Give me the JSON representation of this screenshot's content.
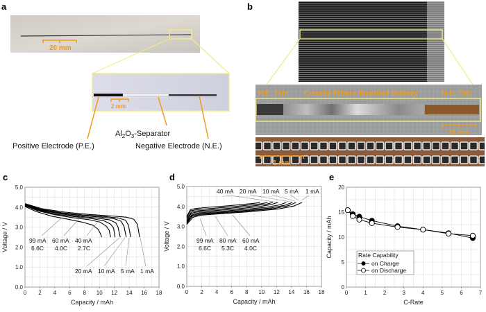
{
  "panels": {
    "a": {
      "label": "a",
      "scale_main": "20 mm",
      "scale_inset": "2 mm",
      "separator_label_pre": "Al",
      "separator_sub1": "2",
      "separator_mid": "O",
      "separator_sub2": "3",
      "separator_post": "-Separator",
      "positive_label": "Positive Electrode (P.E.)",
      "negative_label": "Negative Electrode (N.E.)"
    },
    "b": {
      "label": "b",
      "pe_tab": "P.E. Tab",
      "battery_label": "Coaxial-Fibers Bundled Battery",
      "ne_tab": "N.E. Tab",
      "scale_inset": "20 mm",
      "scale_cross": "1 mm"
    },
    "c": {
      "label": "c"
    },
    "d": {
      "label": "d"
    },
    "e": {
      "label": "e"
    }
  },
  "colors": {
    "highlight_box": "#f0ec8a",
    "scale_bar": "#f39a1e",
    "line": "#000000",
    "grid": "#d8d8d8"
  },
  "chart_data": [
    {
      "panel": "c",
      "type": "line",
      "xlabel": "Capacity  /  mAh",
      "ylabel": "Voltage  /  V",
      "xlim": [
        0,
        18
      ],
      "ylim": [
        0,
        5
      ],
      "xticks": [
        "0",
        "2",
        "4",
        "6",
        "8",
        "10",
        "12",
        "14",
        "16",
        "18"
      ],
      "yticks": [
        "0.0",
        "1.0",
        "2.0",
        "3.0",
        "4.0",
        "5.0"
      ],
      "grid": true,
      "annotations": [
        {
          "text": "99 mA",
          "sub": "6.6C"
        },
        {
          "text": "60 mA",
          "sub": "4.0C"
        },
        {
          "text": "40 mA",
          "sub": "2.7C"
        },
        {
          "text": "20 mA"
        },
        {
          "text": "10 mA"
        },
        {
          "text": "5 mA"
        },
        {
          "text": "1 mA"
        }
      ],
      "series": [
        {
          "x": [
            0,
            2.3,
            5.4,
            8.5,
            11.6,
            13.6,
            14.6,
            15.1,
            15.4
          ],
          "y": [
            4.18,
            3.92,
            3.75,
            3.64,
            3.56,
            3.5,
            3.4,
            3.15,
            2.5
          ]
        },
        {
          "x": [
            0,
            2.1,
            5.0,
            7.8,
            10.7,
            12.5,
            13.5,
            13.9,
            14.2
          ],
          "y": [
            4.16,
            3.9,
            3.72,
            3.61,
            3.53,
            3.46,
            3.35,
            3.1,
            2.5
          ]
        },
        {
          "x": [
            0,
            2.0,
            4.8,
            7.5,
            10.2,
            12.0,
            12.9,
            13.3,
            13.6
          ],
          "y": [
            4.14,
            3.88,
            3.7,
            3.58,
            3.5,
            3.42,
            3.3,
            3.05,
            2.5
          ]
        },
        {
          "x": [
            0,
            1.9,
            4.5,
            7.0,
            9.6,
            11.3,
            12.2,
            12.5,
            12.8
          ],
          "y": [
            4.12,
            3.86,
            3.68,
            3.55,
            3.46,
            3.37,
            3.22,
            3.0,
            2.5
          ]
        },
        {
          "x": [
            0,
            1.8,
            4.2,
            6.7,
            9.1,
            10.6,
            11.5,
            11.9,
            12.1
          ],
          "y": [
            4.1,
            3.84,
            3.65,
            3.52,
            3.42,
            3.32,
            3.15,
            2.95,
            2.5
          ]
        },
        {
          "x": [
            0,
            1.7,
            4.0,
            6.3,
            8.6,
            10.1,
            10.9,
            11.3,
            11.5
          ],
          "y": [
            4.07,
            3.82,
            3.62,
            3.48,
            3.37,
            3.25,
            3.05,
            2.85,
            2.5
          ]
        },
        {
          "x": [
            0,
            1.5,
            3.6,
            5.7,
            7.7,
            9.1,
            9.8,
            10.1,
            10.3
          ],
          "y": [
            4.03,
            3.78,
            3.55,
            3.4,
            3.25,
            3.1,
            2.9,
            2.7,
            2.5
          ]
        }
      ]
    },
    {
      "panel": "d",
      "type": "line",
      "xlabel": "Capacity  /  mAh",
      "ylabel": "Voltage  /  V",
      "xlim": [
        0,
        18
      ],
      "ylim": [
        0,
        5
      ],
      "xticks": [
        "0",
        "2",
        "4",
        "6",
        "8",
        "10",
        "12",
        "14",
        "16",
        "18"
      ],
      "yticks": [
        "0.0",
        "1.0",
        "2.0",
        "3.0",
        "4.0",
        "5.0"
      ],
      "grid": true,
      "annotations": [
        {
          "text": "40 mA"
        },
        {
          "text": "20 mA"
        },
        {
          "text": "10 mA"
        },
        {
          "text": "5 mA"
        },
        {
          "text": "1 mA"
        },
        {
          "text": "99 mA",
          "sub": "6.6C"
        },
        {
          "text": "80 mA",
          "sub": "5.3C"
        },
        {
          "text": "60 mA",
          "sub": "4.0C"
        }
      ],
      "series": [
        {
          "x": [
            0,
            0.8,
            1.8,
            4.6,
            8.5,
            12.3,
            14.3,
            15.4
          ],
          "y": [
            3.1,
            3.45,
            3.56,
            3.64,
            3.74,
            3.88,
            4.02,
            4.2
          ]
        },
        {
          "x": [
            0,
            0.7,
            1.8,
            4.4,
            8.0,
            11.7,
            13.6,
            14.6
          ],
          "y": [
            3.15,
            3.5,
            3.6,
            3.67,
            3.77,
            3.9,
            4.04,
            4.2
          ]
        },
        {
          "x": [
            0,
            0.7,
            1.7,
            4.2,
            7.8,
            11.3,
            13.1,
            14.1
          ],
          "y": [
            3.2,
            3.55,
            3.64,
            3.7,
            3.8,
            3.93,
            4.06,
            4.2
          ]
        },
        {
          "x": [
            0,
            0.7,
            1.6,
            4.0,
            7.3,
            10.6,
            12.4,
            13.3
          ],
          "y": [
            3.25,
            3.6,
            3.68,
            3.74,
            3.84,
            3.96,
            4.08,
            4.2
          ]
        },
        {
          "x": [
            0,
            0.6,
            1.5,
            3.7,
            6.7,
            9.8,
            11.3,
            12.2
          ],
          "y": [
            3.3,
            3.66,
            3.73,
            3.79,
            3.88,
            4.0,
            4.1,
            4.2
          ]
        },
        {
          "x": [
            0,
            0.6,
            1.4,
            3.5,
            6.3,
            9.2,
            10.7,
            11.5
          ],
          "y": [
            3.38,
            3.72,
            3.78,
            3.84,
            3.93,
            4.04,
            4.12,
            4.2
          ]
        },
        {
          "x": [
            0,
            0.5,
            1.3,
            3.2,
            5.9,
            8.6,
            10.0,
            10.8
          ],
          "y": [
            3.45,
            3.78,
            3.84,
            3.9,
            3.98,
            4.08,
            4.14,
            4.2
          ]
        },
        {
          "x": [
            0,
            0.5,
            1.2,
            2.9,
            5.4,
            7.8,
            9.1,
            9.8
          ],
          "y": [
            3.5,
            3.84,
            3.9,
            3.96,
            4.03,
            4.11,
            4.16,
            4.2
          ]
        }
      ]
    },
    {
      "panel": "e",
      "type": "line",
      "xlabel": "C-Rate",
      "ylabel": "Capacity  /  mAh",
      "xlim": [
        0,
        7
      ],
      "ylim": [
        0,
        20
      ],
      "xticks": [
        "0",
        "1",
        "2",
        "3",
        "4",
        "5",
        "6",
        "7"
      ],
      "yticks": [
        "0",
        "5",
        "10",
        "15",
        "20"
      ],
      "grid": true,
      "legend": {
        "title": "Rate Capability",
        "placement": "bottom-left"
      },
      "series": [
        {
          "name": "on Charge",
          "marker": "filled-circle",
          "x": [
            0.07,
            0.33,
            0.67,
            1.33,
            2.67,
            4.0,
            5.33,
            6.6
          ],
          "y": [
            15.4,
            14.6,
            14.1,
            13.3,
            12.2,
            11.5,
            10.8,
            9.8
          ]
        },
        {
          "name": "on Discharge",
          "marker": "open-circle",
          "x": [
            0.07,
            0.33,
            0.67,
            1.33,
            2.67,
            4.0,
            5.33,
            6.6
          ],
          "y": [
            15.4,
            14.2,
            13.5,
            12.8,
            12.0,
            11.5,
            10.7,
            10.3
          ]
        }
      ]
    }
  ]
}
